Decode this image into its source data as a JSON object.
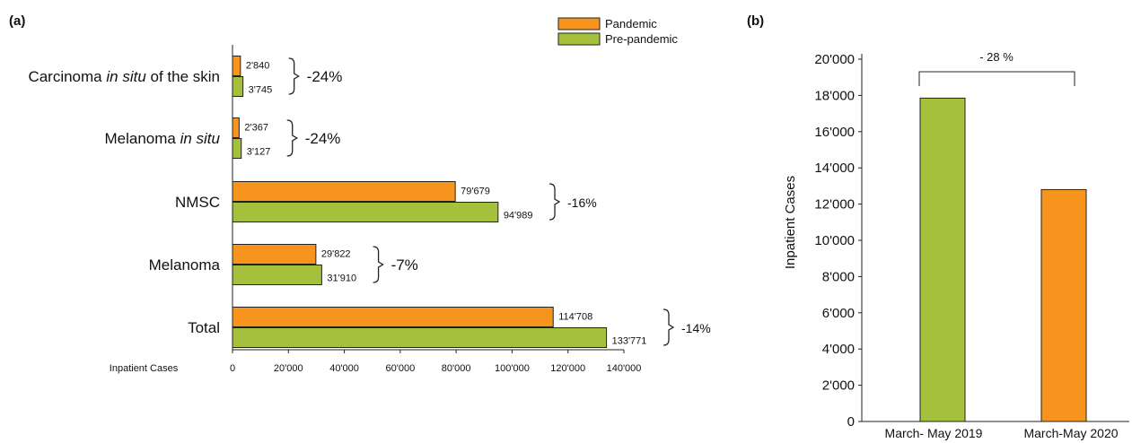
{
  "panel_labels": [
    "(a)",
    "(b)"
  ],
  "colors": {
    "pandemic": "#F7941D",
    "pre_pandemic": "#A4C03C",
    "stroke": "#222222"
  },
  "chart_data": [
    {
      "type": "bar",
      "orientation": "horizontal",
      "panel": "(a)",
      "categories": [
        {
          "text": "Carcinoma ",
          "italic": "in situ",
          "after": " of the skin"
        },
        {
          "text": "Melanoma ",
          "italic": "in situ",
          "after": ""
        },
        {
          "text": "NMSC",
          "italic": "",
          "after": ""
        },
        {
          "text": "Melanoma",
          "italic": "",
          "after": ""
        },
        {
          "text": "Total",
          "italic": "",
          "after": ""
        }
      ],
      "series": [
        {
          "name": "Pandemic",
          "color": "#F7941D",
          "values": [
            2840,
            2367,
            79679,
            29822,
            114708
          ],
          "labels": [
            "2'840",
            "2'367",
            "79'679",
            "29'822",
            "114'708"
          ]
        },
        {
          "name": "Pre-pandemic",
          "color": "#A4C03C",
          "values": [
            3745,
            3127,
            94989,
            31910,
            133771
          ],
          "labels": [
            "3'745",
            "3'127",
            "94'989",
            "31'910",
            "133'771"
          ]
        }
      ],
      "changes": [
        "-24%",
        "-24%",
        "-16%",
        "-7%",
        "-14%"
      ],
      "xlabel": "Inpatient Cases",
      "xlim": [
        0,
        140000
      ],
      "xticks": [
        "0",
        "20'000",
        "40'000",
        "60'000",
        "80'000",
        "100'000",
        "120'000",
        "140'000"
      ],
      "legend": [
        "Pandemic",
        "Pre-pandemic"
      ],
      "legend_position": "top-right",
      "grid": false
    },
    {
      "type": "bar",
      "panel": "(b)",
      "categories": [
        "March- May 2019",
        "March-May 2020"
      ],
      "values": [
        17850,
        12800
      ],
      "colors": [
        "#A4C03C",
        "#F7941D"
      ],
      "ylabel": "Inpatient Cases",
      "ylim": [
        0,
        20000
      ],
      "yticks": [
        "0",
        "2'000",
        "4'000",
        "6'000",
        "8'000",
        "10'000",
        "12'000",
        "14'000",
        "16'000",
        "18'000",
        "20'000"
      ],
      "annotation": "- 28 %",
      "grid": false
    }
  ]
}
